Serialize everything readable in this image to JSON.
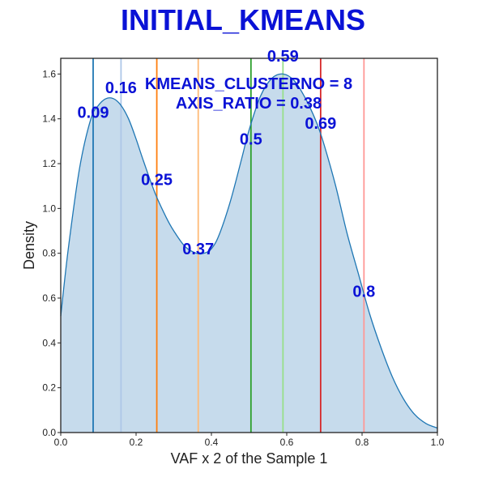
{
  "chart_data": {
    "type": "area",
    "title": "INITIAL_KMEANS",
    "xlabel": "VAF x 2 of the Sample 1",
    "ylabel": "Density",
    "xlim": [
      0.0,
      1.0
    ],
    "ylim": [
      0.0,
      1.67
    ],
    "xticks": [
      "0.0",
      "0.2",
      "0.4",
      "0.6",
      "0.8",
      "1.0"
    ],
    "yticks": [
      "0.0",
      "0.2",
      "0.4",
      "0.6",
      "0.8",
      "1.0",
      "1.2",
      "1.4",
      "1.6"
    ],
    "grid": false,
    "fill_color": "#c6dbec",
    "line_color": "#1f77b4",
    "density": {
      "x": [
        0.0,
        0.02,
        0.05,
        0.08,
        0.1,
        0.12,
        0.14,
        0.16,
        0.18,
        0.2,
        0.22,
        0.25,
        0.28,
        0.3,
        0.33,
        0.36,
        0.38,
        0.4,
        0.42,
        0.45,
        0.48,
        0.5,
        0.53,
        0.56,
        0.59,
        0.62,
        0.65,
        0.68,
        0.7,
        0.73,
        0.76,
        0.79,
        0.82,
        0.85,
        0.88,
        0.91,
        0.94,
        0.97,
        1.0
      ],
      "y": [
        0.52,
        0.82,
        1.18,
        1.4,
        1.46,
        1.49,
        1.49,
        1.46,
        1.4,
        1.31,
        1.21,
        1.07,
        0.96,
        0.9,
        0.83,
        0.8,
        0.8,
        0.82,
        0.88,
        1.03,
        1.22,
        1.35,
        1.5,
        1.58,
        1.6,
        1.57,
        1.49,
        1.38,
        1.28,
        1.1,
        0.89,
        0.71,
        0.53,
        0.38,
        0.25,
        0.15,
        0.08,
        0.04,
        0.02
      ]
    },
    "vlines": [
      {
        "x": 0.086,
        "color": "#1f77b4"
      },
      {
        "x": 0.16,
        "color": "#aec7e8"
      },
      {
        "x": 0.255,
        "color": "#ff7f0e"
      },
      {
        "x": 0.365,
        "color": "#ffbb78"
      },
      {
        "x": 0.505,
        "color": "#2ca02c"
      },
      {
        "x": 0.59,
        "color": "#98df8a"
      },
      {
        "x": 0.69,
        "color": "#d62728"
      },
      {
        "x": 0.805,
        "color": "#ff9896"
      }
    ],
    "annotations": [
      {
        "text": "0.09",
        "x": 0.086,
        "y": 1.43
      },
      {
        "text": "0.16",
        "x": 0.16,
        "y": 1.54
      },
      {
        "text": "0.25",
        "x": 0.255,
        "y": 1.13
      },
      {
        "text": "0.37",
        "x": 0.365,
        "y": 0.82
      },
      {
        "text": "0.5",
        "x": 0.505,
        "y": 1.31
      },
      {
        "text": "0.59",
        "x": 0.59,
        "y": 1.68
      },
      {
        "text": "0.69",
        "x": 0.69,
        "y": 1.38
      },
      {
        "text": "0.8",
        "x": 0.805,
        "y": 0.63
      }
    ],
    "info_lines": [
      "KMEANS_CLUSTERNO = 8",
      "AXIS_RATIO = 0.38"
    ]
  }
}
